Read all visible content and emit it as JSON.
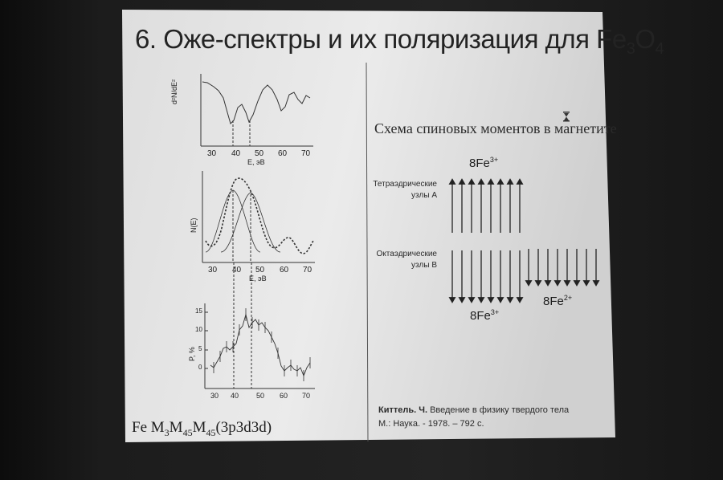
{
  "slide": {
    "title_main": "6. Оже-спектры и их поляризация для Fe",
    "title_sub1": "3",
    "title_mid": "O",
    "title_sub2": "4"
  },
  "plots": {
    "top_ylabel": "d²N/dE²",
    "mid_ylabel": "N(E)",
    "bot_ylabel": "P, %",
    "xlabel": "E, эВ",
    "xticks": [
      "30",
      "40",
      "50",
      "60",
      "70"
    ],
    "bot_yticks": [
      "15",
      "10",
      "5",
      "0"
    ]
  },
  "formula": {
    "a": "Fe M",
    "s1": "3",
    "b": "M",
    "s2": "45",
    "c": "M",
    "s3": "45",
    "d": "(3p3d3d)"
  },
  "scheme": {
    "title": "Схема спиновых моментов в магнетите",
    "tetra_label_1": "Тетраэдрические",
    "tetra_label_2": "узлы А",
    "octa_label_1": "Октаэдрические",
    "octa_label_2": "узлы В",
    "fe_top": "8Fe",
    "fe_top_sup": "3+",
    "fe_bottom": "8Fe",
    "fe_bottom_sup": "3+",
    "fe_right": "8Fe",
    "fe_right_sup": "2+"
  },
  "reference": {
    "author": "Киттель. Ч.",
    "book": " Введение в физику твердого тела",
    "publisher": "М.: Наука. - 1978. – 792 с."
  },
  "colors": {
    "slide_bg": "#e9e9e9",
    "ink": "#222222",
    "room_dark": "#1a1a1a"
  }
}
